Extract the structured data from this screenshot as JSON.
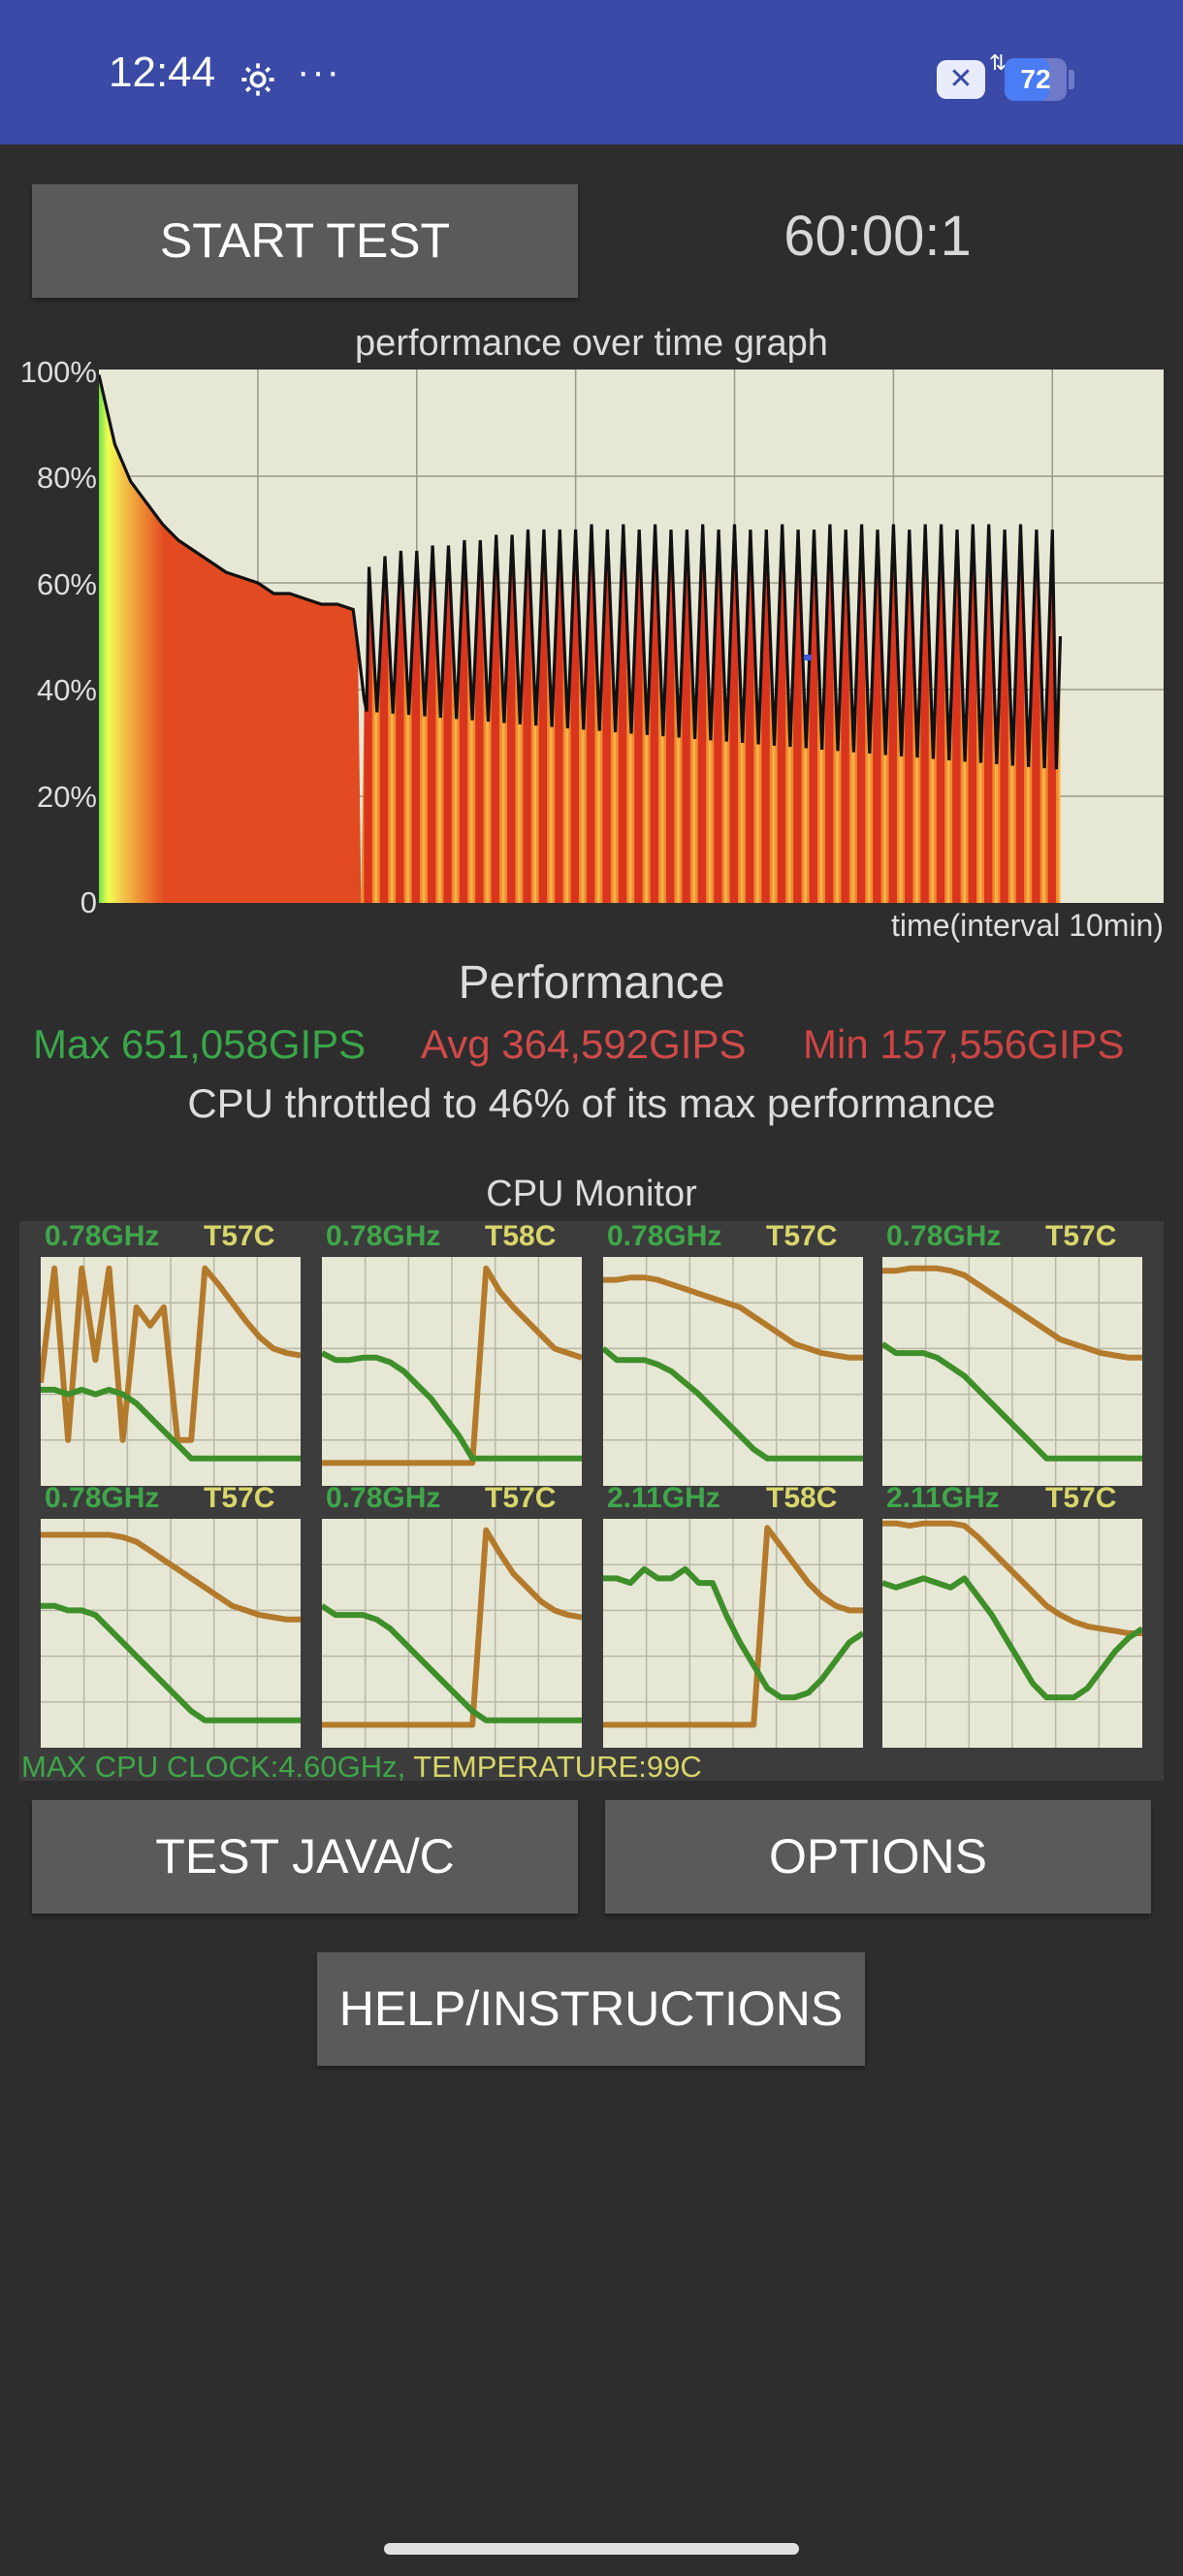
{
  "status_bar": {
    "time": "12:44",
    "more": "···",
    "battery_level": "72",
    "battery_fraction": 0.72
  },
  "controls": {
    "start_label": "START TEST",
    "timer": "60:00:1"
  },
  "perf_graph": {
    "title": "performance over time graph",
    "x_label": "time(interval 10min)"
  },
  "chart_data": {
    "type": "area",
    "title": "performance over time graph",
    "xlabel": "time(interval 10min)",
    "ylabel": "",
    "y_ticks": [
      "100%",
      "80%",
      "60%",
      "40%",
      "20%",
      "0"
    ],
    "ylim": [
      0,
      100
    ],
    "xlim": [
      0,
      67
    ],
    "grid": true,
    "x_gridlines_minutes": [
      10,
      20,
      30,
      40,
      50,
      60
    ],
    "series": [
      {
        "x": [
          0,
          1,
          2,
          3,
          4,
          5,
          6,
          7,
          8,
          9,
          10,
          11,
          12,
          13,
          14,
          15,
          16,
          16.3,
          16.7,
          17,
          18,
          19,
          20,
          21,
          22,
          23,
          24,
          25,
          26,
          27,
          28,
          29,
          30,
          31,
          32,
          33,
          34,
          35,
          36,
          37,
          38,
          39,
          40,
          41,
          42,
          43,
          44,
          45,
          46,
          47,
          48,
          49,
          50,
          51,
          52,
          53,
          54,
          55,
          56,
          57,
          58,
          59,
          60,
          60.5
        ],
        "values": [
          99,
          86,
          79,
          75,
          71,
          68,
          66,
          64,
          62,
          61,
          60,
          58,
          58,
          57,
          56,
          56,
          55,
          48,
          38,
          63,
          65,
          66,
          66,
          67,
          67,
          68,
          68,
          69,
          69,
          70,
          70,
          70,
          70,
          71,
          70,
          71,
          70,
          71,
          70,
          70,
          71,
          70,
          71,
          70,
          70,
          71,
          70,
          70,
          71,
          70,
          71,
          70,
          71,
          70,
          71,
          71,
          70,
          71,
          71,
          70,
          71,
          70,
          70,
          50
        ]
      }
    ],
    "oscillation_troughs": {
      "x_range": [
        16.5,
        60.5
      ],
      "cycle_minutes": 1.0,
      "trough_values_start": 36,
      "trough_values_end": 25
    },
    "annotation": {
      "x": 44.6,
      "y": 46
    }
  },
  "performance": {
    "title": "Performance",
    "max": "Max 651,058GIPS",
    "avg": "Avg 364,592GIPS",
    "min": "Min 157,556GIPS",
    "throttle": "CPU throttled to 46% of its max performance"
  },
  "cpu_monitor": {
    "title": "CPU Monitor",
    "cores": [
      {
        "freq": "0.78GHz",
        "temp": "T57C",
        "series_temp": [
          45,
          95,
          20,
          95,
          55,
          95,
          20,
          78,
          70,
          78,
          20,
          20,
          95,
          88,
          80,
          72,
          65,
          60,
          58,
          57
        ],
        "series_freq": [
          42,
          42,
          40,
          42,
          40,
          42,
          40,
          36,
          30,
          24,
          18,
          12,
          12,
          12,
          12,
          12,
          12,
          12,
          12,
          12
        ]
      },
      {
        "freq": "0.78GHz",
        "temp": "T58C",
        "series_temp": [
          10,
          10,
          10,
          10,
          10,
          10,
          10,
          10,
          10,
          10,
          10,
          10,
          95,
          85,
          78,
          72,
          66,
          60,
          58,
          56
        ],
        "series_freq": [
          58,
          55,
          55,
          56,
          56,
          54,
          50,
          44,
          38,
          30,
          22,
          12,
          12,
          12,
          12,
          12,
          12,
          12,
          12,
          12
        ]
      },
      {
        "freq": "0.78GHz",
        "temp": "T57C",
        "series_temp": [
          90,
          90,
          91,
          91,
          90,
          88,
          86,
          84,
          82,
          80,
          78,
          74,
          70,
          66,
          62,
          60,
          58,
          57,
          56,
          56
        ],
        "series_freq": [
          60,
          55,
          55,
          55,
          53,
          50,
          45,
          40,
          34,
          28,
          22,
          16,
          12,
          12,
          12,
          12,
          12,
          12,
          12,
          12
        ]
      },
      {
        "freq": "0.78GHz",
        "temp": "T57C",
        "series_temp": [
          94,
          94,
          95,
          95,
          95,
          94,
          92,
          88,
          84,
          80,
          76,
          72,
          68,
          64,
          62,
          60,
          58,
          57,
          56,
          56
        ],
        "series_freq": [
          62,
          58,
          58,
          58,
          56,
          52,
          48,
          42,
          36,
          30,
          24,
          18,
          12,
          12,
          12,
          12,
          12,
          12,
          12,
          12
        ]
      },
      {
        "freq": "0.78GHz",
        "temp": "T57C",
        "series_temp": [
          93,
          93,
          93,
          93,
          93,
          93,
          92,
          90,
          86,
          82,
          78,
          74,
          70,
          66,
          62,
          60,
          58,
          57,
          56,
          56
        ],
        "series_freq": [
          62,
          62,
          60,
          60,
          58,
          52,
          46,
          40,
          34,
          28,
          22,
          16,
          12,
          12,
          12,
          12,
          12,
          12,
          12,
          12
        ]
      },
      {
        "freq": "0.78GHz",
        "temp": "T57C",
        "series_temp": [
          10,
          10,
          10,
          10,
          10,
          10,
          10,
          10,
          10,
          10,
          10,
          10,
          95,
          85,
          76,
          70,
          64,
          60,
          58,
          57
        ],
        "series_freq": [
          62,
          58,
          58,
          58,
          56,
          52,
          46,
          40,
          34,
          28,
          22,
          16,
          12,
          12,
          12,
          12,
          12,
          12,
          12,
          12
        ]
      },
      {
        "freq": "2.11GHz",
        "temp": "T58C",
        "series_temp": [
          10,
          10,
          10,
          10,
          10,
          10,
          10,
          10,
          10,
          10,
          10,
          10,
          96,
          88,
          80,
          72,
          66,
          62,
          60,
          60
        ],
        "series_freq": [
          74,
          74,
          72,
          78,
          74,
          74,
          78,
          72,
          72,
          58,
          46,
          36,
          26,
          22,
          22,
          24,
          30,
          38,
          46,
          50
        ]
      },
      {
        "freq": "2.11GHz",
        "temp": "T57C",
        "series_temp": [
          98,
          98,
          97,
          98,
          98,
          98,
          97,
          92,
          86,
          80,
          74,
          68,
          62,
          58,
          55,
          53,
          52,
          51,
          50,
          50
        ],
        "series_freq": [
          72,
          70,
          72,
          74,
          72,
          70,
          74,
          66,
          58,
          48,
          38,
          28,
          22,
          22,
          22,
          26,
          34,
          42,
          48,
          52
        ]
      }
    ],
    "footer_clock": "MAX CPU CLOCK:4.60GHz,",
    "footer_temp": "TEMPERATURE:99C",
    "colors": {
      "freq": "#3e8f2a",
      "temp": "#b37a2c",
      "grid": "#b8b8a6",
      "bg": "#e7e7d5"
    }
  },
  "buttons": {
    "test_java": "TEST JAVA/C",
    "options": "OPTIONS",
    "help": "HELP/INSTRUCTIONS"
  },
  "colors": {
    "status_bar": "#3a4aa6",
    "background": "#2d2d2d",
    "button": "#5a5a5a",
    "max": "#3aa64a",
    "avg": "#d04a4a",
    "min": "#cc4545",
    "graph_bg": "#e7e7d5"
  }
}
